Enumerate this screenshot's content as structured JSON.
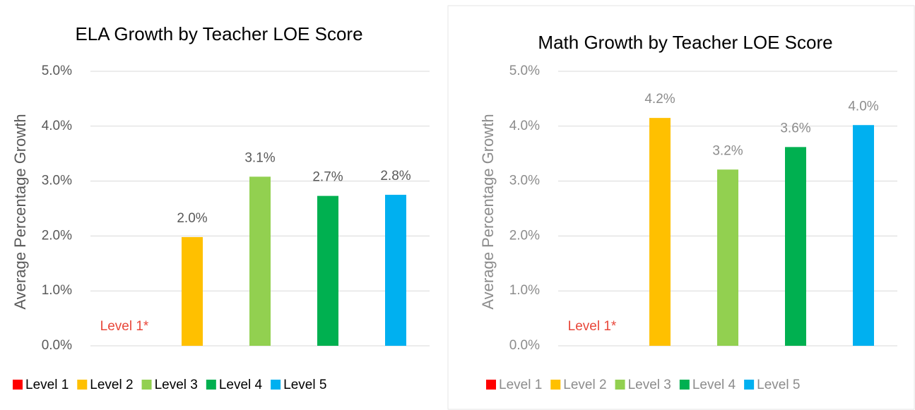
{
  "chart_data": [
    {
      "type": "bar",
      "title": "ELA Growth by Teacher LOE Score",
      "ylabel": "Average Percentage Growth",
      "categories": [
        "Level 1",
        "Level 2",
        "Level 3",
        "Level 4",
        "Level 5"
      ],
      "values": [
        null,
        1.98,
        3.08,
        2.73,
        2.75
      ],
      "value_labels": [
        null,
        "2.0%",
        "3.1%",
        "2.7%",
        "2.8%"
      ],
      "colors": [
        "#ff0000",
        "#ffc000",
        "#92d050",
        "#00b050",
        "#00b0f0"
      ],
      "annotation": "Level 1*",
      "annotation_color": "#e8473a",
      "ylim": [
        0,
        5
      ],
      "yticks": [
        {
          "value": 0,
          "label": "0.0%"
        },
        {
          "value": 1,
          "label": "1.0%"
        },
        {
          "value": 2,
          "label": "2.0%"
        },
        {
          "value": 3,
          "label": "3.0%"
        },
        {
          "value": 4,
          "label": "4.0%"
        },
        {
          "value": 5,
          "label": "5.0%"
        }
      ],
      "grid": true,
      "legend": "bottom"
    },
    {
      "type": "bar",
      "title": "Math Growth by Teacher LOE Score",
      "ylabel": "Average Percentage Growth",
      "categories": [
        "Level 1",
        "Level 2",
        "Level 3",
        "Level 4",
        "Level 5"
      ],
      "values": [
        null,
        4.15,
        3.21,
        3.62,
        4.02
      ],
      "value_labels": [
        null,
        "4.2%",
        "3.2%",
        "3.6%",
        "4.0%"
      ],
      "colors": [
        "#ff0000",
        "#ffc000",
        "#92d050",
        "#00b050",
        "#00b0f0"
      ],
      "annotation": "Level 1*",
      "annotation_color": "#e8473a",
      "ylim": [
        0,
        5
      ],
      "yticks": [
        {
          "value": 0,
          "label": "0.0%"
        },
        {
          "value": 1,
          "label": "1.0%"
        },
        {
          "value": 2,
          "label": "2.0%"
        },
        {
          "value": 3,
          "label": "3.0%"
        },
        {
          "value": 4,
          "label": "4.0%"
        },
        {
          "value": 5,
          "label": "5.0%"
        }
      ],
      "grid": true,
      "legend": "bottom"
    }
  ]
}
